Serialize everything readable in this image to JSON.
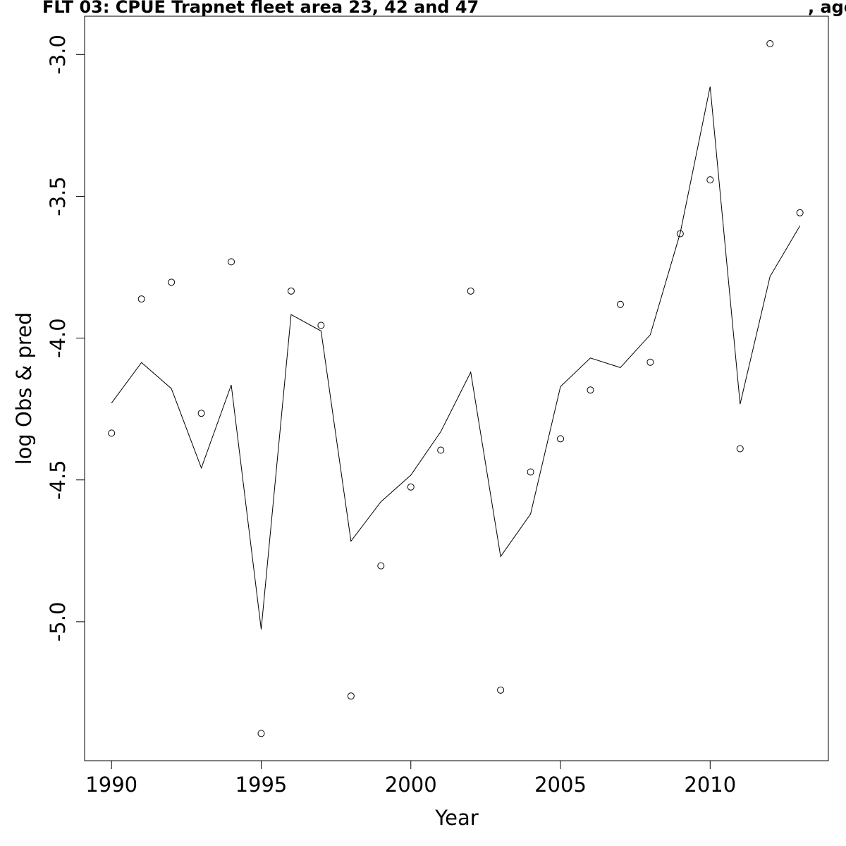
{
  "chart_data": {
    "type": "line",
    "title": "FLT 03: CPUE Trapnet fleet area 23, 42 and 47",
    "title_right": ", age",
    "xlabel": "Year",
    "ylabel": "log Obs & pred",
    "x_ticks": [
      1990,
      1995,
      2000,
      2005,
      2010
    ],
    "x_tick_labels": [
      "1990",
      "1995",
      "2000",
      "2005",
      "2010"
    ],
    "y_ticks": [
      -5.0,
      -4.5,
      -4.0,
      -3.5,
      -3.0
    ],
    "y_tick_labels": [
      "-5.0",
      "-4.5",
      "-4.0",
      "-3.5",
      "-3.0"
    ],
    "xlim": [
      1989.1,
      2013.95
    ],
    "ylim": [
      -5.49,
      -2.865
    ],
    "grid": false,
    "legend": "none",
    "series": [
      {
        "style": "points",
        "marker": "open-circle",
        "x": [
          1990,
          1991,
          1992,
          1993,
          1994,
          1995,
          1996,
          1997,
          1998,
          1999,
          2000,
          2001,
          2002,
          2003,
          2004,
          2005,
          2006,
          2007,
          2008,
          2009,
          2010,
          2011,
          2012,
          2013
        ],
        "y": [
          -4.335,
          -3.862,
          -3.803,
          -4.265,
          -3.731,
          -5.394,
          -3.834,
          -3.955,
          -5.262,
          -4.803,
          -4.525,
          -4.395,
          -3.834,
          -5.241,
          -4.472,
          -4.355,
          -4.183,
          -3.881,
          -4.085,
          -3.632,
          -3.442,
          -4.39,
          -2.962,
          -3.558
        ]
      },
      {
        "style": "line",
        "x": [
          1990,
          1991,
          1992,
          1993,
          1994,
          1995,
          1996,
          1997,
          1998,
          1999,
          2000,
          2001,
          2002,
          2003,
          2004,
          2005,
          2006,
          2007,
          2008,
          2009,
          2010,
          2011,
          2012,
          2013
        ],
        "y": [
          -4.229,
          -4.086,
          -4.178,
          -4.458,
          -4.165,
          -5.027,
          -3.917,
          -3.975,
          -4.716,
          -4.577,
          -4.483,
          -4.33,
          -4.12,
          -4.77,
          -4.62,
          -4.171,
          -4.07,
          -4.104,
          -3.988,
          -3.63,
          -3.113,
          -4.233,
          -3.783,
          -3.604
        ]
      }
    ]
  }
}
